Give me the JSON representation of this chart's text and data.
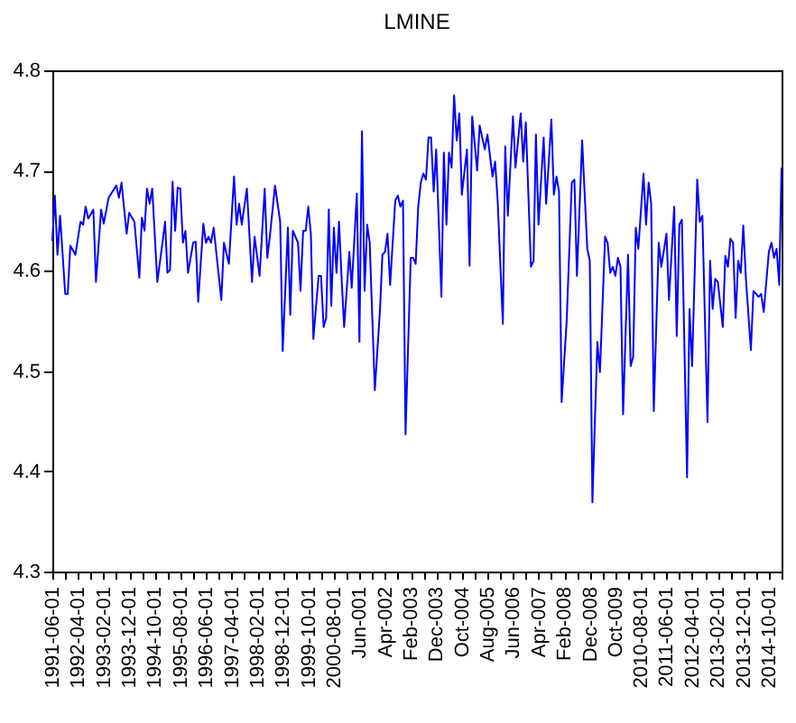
{
  "chart_data": {
    "type": "line",
    "title": "LMINE",
    "x": [
      "1991-06",
      "1991-07",
      "1991-08",
      "1991-09",
      "1991-11",
      "1991-12",
      "1992-01",
      "1992-03",
      "1992-05",
      "1992-06",
      "1992-07",
      "1992-08",
      "1992-10",
      "1992-11",
      "1993-01",
      "1993-02",
      "1993-04",
      "1993-07",
      "1993-08",
      "1993-09",
      "1993-11",
      "1993-12",
      "1994-02",
      "1994-04",
      "1994-05",
      "1994-06",
      "1994-07",
      "1994-08",
      "1994-09",
      "1994-11",
      "1995-01",
      "1995-02",
      "1995-03",
      "1995-04",
      "1995-05",
      "1995-06",
      "1995-07",
      "1995-08",
      "1995-09",
      "1995-10",
      "1995-11",
      "1996-01",
      "1996-02",
      "1996-03",
      "1996-05",
      "1996-06",
      "1996-07",
      "1996-08",
      "1996-09",
      "1996-12",
      "1997-01",
      "1997-03",
      "1997-05",
      "1997-06",
      "1997-07",
      "1997-08",
      "1997-10",
      "1997-12",
      "1998-01",
      "1998-03",
      "1998-05",
      "1998-06",
      "1998-07",
      "1998-09",
      "1998-11",
      "1998-12",
      "1999-02",
      "1999-03",
      "1999-04",
      "1999-06",
      "1999-07",
      "1999-08",
      "1999-09",
      "1999-10",
      "1999-11",
      "1999-12",
      "2000-02",
      "2000-03",
      "2000-04",
      "2000-05",
      "2000-06",
      "2000-07",
      "2000-08",
      "2000-09",
      "2000-10",
      "2000-11",
      "2000-12",
      "2001-02",
      "2001-03",
      "2001-05",
      "2001-06",
      "2001-07",
      "2001-08",
      "2001-09",
      "2001-10",
      "2001-12",
      "2002-02",
      "2002-03",
      "2002-04",
      "2002-05",
      "2002-06",
      "2002-08",
      "2002-09",
      "2002-10",
      "2002-11",
      "2002-12",
      "2003-02",
      "2003-03",
      "2003-04",
      "2003-05",
      "2003-06",
      "2003-07",
      "2003-08",
      "2003-09",
      "2003-10",
      "2003-11",
      "2003-12",
      "2004-02",
      "2004-03",
      "2004-04",
      "2004-05",
      "2004-06",
      "2004-07",
      "2004-08",
      "2004-09",
      "2004-10",
      "2004-12",
      "2005-01",
      "2005-02",
      "2005-04",
      "2005-05",
      "2005-07",
      "2005-08",
      "2005-10",
      "2005-11",
      "2005-12",
      "2006-02",
      "2006-03",
      "2006-04",
      "2006-06",
      "2006-07",
      "2006-09",
      "2006-10",
      "2006-11",
      "2007-01",
      "2007-02",
      "2007-03",
      "2007-04",
      "2007-06",
      "2007-07",
      "2007-09",
      "2007-10",
      "2007-11",
      "2007-12",
      "2008-01",
      "2008-03",
      "2008-05",
      "2008-06",
      "2008-07",
      "2008-09",
      "2008-11",
      "2008-12",
      "2009-01",
      "2009-03",
      "2009-04",
      "2009-06",
      "2009-07",
      "2009-08",
      "2009-09",
      "2009-10",
      "2009-11",
      "2009-12",
      "2010-01",
      "2010-03",
      "2010-04",
      "2010-05",
      "2010-06",
      "2010-07",
      "2010-09",
      "2010-10",
      "2010-11",
      "2010-12",
      "2011-01",
      "2011-03",
      "2011-04",
      "2011-06",
      "2011-07",
      "2011-09",
      "2011-10",
      "2011-11",
      "2011-12",
      "2012-02",
      "2012-03",
      "2012-04",
      "2012-06",
      "2012-07",
      "2012-08",
      "2012-10",
      "2012-11",
      "2012-12",
      "2013-01",
      "2013-02",
      "2013-04",
      "2013-05",
      "2013-06",
      "2013-07",
      "2013-08",
      "2013-09",
      "2013-10",
      "2013-11",
      "2013-12",
      "2014-01",
      "2014-03",
      "2014-04",
      "2014-05",
      "2014-06",
      "2014-07",
      "2014-08",
      "2014-10",
      "2014-11",
      "2014-12",
      "2015-01",
      "2015-02",
      "2015-03"
    ],
    "series": [
      {
        "color": "#0000ff",
        "values": [
          4.63,
          4.675,
          4.616,
          4.655,
          4.577,
          4.577,
          4.625,
          4.616,
          4.649,
          4.646,
          4.664,
          4.652,
          4.661,
          4.589,
          4.661,
          4.647,
          4.673,
          4.685,
          4.673,
          4.688,
          4.637,
          4.658,
          4.649,
          4.593,
          4.653,
          4.64,
          4.682,
          4.667,
          4.682,
          4.589,
          4.628,
          4.649,
          4.598,
          4.601,
          4.689,
          4.64,
          4.683,
          4.682,
          4.628,
          4.64,
          4.598,
          4.628,
          4.629,
          4.569,
          4.647,
          4.628,
          4.634,
          4.628,
          4.643,
          4.571,
          4.628,
          4.607,
          4.694,
          4.646,
          4.667,
          4.646,
          4.682,
          4.589,
          4.634,
          4.595,
          4.682,
          4.613,
          4.634,
          4.685,
          4.649,
          4.52,
          4.643,
          4.556,
          4.64,
          4.628,
          4.58,
          4.64,
          4.64,
          4.664,
          4.637,
          4.532,
          4.595,
          4.595,
          4.544,
          4.553,
          4.661,
          4.565,
          4.643,
          4.598,
          4.649,
          4.592,
          4.544,
          4.619,
          4.583,
          4.677,
          4.529,
          4.739,
          4.58,
          4.646,
          4.628,
          4.481,
          4.562,
          4.616,
          4.619,
          4.637,
          4.586,
          4.67,
          4.675,
          4.664,
          4.67,
          4.437,
          4.613,
          4.613,
          4.607,
          4.664,
          4.688,
          4.697,
          4.691,
          4.733,
          4.733,
          4.679,
          4.721,
          4.574,
          4.718,
          4.646,
          4.718,
          4.703,
          4.775,
          4.73,
          4.757,
          4.676,
          4.721,
          4.605,
          4.754,
          4.7,
          4.745,
          4.721,
          4.736,
          4.694,
          4.709,
          4.67,
          4.547,
          4.724,
          4.655,
          4.754,
          4.703,
          4.757,
          4.709,
          4.748,
          4.604,
          4.61,
          4.736,
          4.646,
          4.733,
          4.667,
          4.751,
          4.676,
          4.694,
          4.679,
          4.469,
          4.55,
          4.688,
          4.691,
          4.595,
          4.73,
          4.622,
          4.61,
          4.369,
          4.529,
          4.499,
          4.634,
          4.628,
          4.598,
          4.604,
          4.595,
          4.613,
          4.604,
          4.457,
          4.616,
          4.505,
          4.514,
          4.643,
          4.622,
          4.697,
          4.646,
          4.688,
          4.667,
          4.46,
          4.628,
          4.604,
          4.637,
          4.571,
          4.664,
          4.535,
          4.646,
          4.651,
          4.394,
          4.562,
          4.505,
          4.691,
          4.649,
          4.655,
          4.449,
          4.61,
          4.562,
          4.592,
          4.589,
          4.544,
          4.615,
          4.604,
          4.632,
          4.628,
          4.553,
          4.61,
          4.598,
          4.645,
          4.592,
          4.521,
          4.58,
          4.577,
          4.574,
          4.577,
          4.559,
          4.619,
          4.628,
          4.613,
          4.622,
          4.586,
          4.703
        ]
      }
    ],
    "xlim": [
      "1991-06",
      "2015-03"
    ],
    "xticks": [
      {
        "value": "1991-06",
        "label": "1991-06-01"
      },
      {
        "value": "1991-11",
        "label": null
      },
      {
        "value": "1992-04",
        "label": "1992-04-01"
      },
      {
        "value": "1992-09",
        "label": null
      },
      {
        "value": "1993-02",
        "label": "1993-02-01"
      },
      {
        "value": "1993-07",
        "label": null
      },
      {
        "value": "1993-12",
        "label": "1993-12-01"
      },
      {
        "value": "1994-05",
        "label": null
      },
      {
        "value": "1994-10",
        "label": "1994-10-01"
      },
      {
        "value": "1995-03",
        "label": null
      },
      {
        "value": "1995-08",
        "label": "1995-08-01"
      },
      {
        "value": "1996-01",
        "label": null
      },
      {
        "value": "1996-06",
        "label": "1996-06-01"
      },
      {
        "value": "1996-11",
        "label": null
      },
      {
        "value": "1997-04",
        "label": "1997-04-01"
      },
      {
        "value": "1997-09",
        "label": null
      },
      {
        "value": "1998-02",
        "label": "1998-02-01"
      },
      {
        "value": "1998-07",
        "label": null
      },
      {
        "value": "1998-12",
        "label": "1998-12-01"
      },
      {
        "value": "1999-05",
        "label": null
      },
      {
        "value": "1999-10",
        "label": "1999-10-01"
      },
      {
        "value": "2000-03",
        "label": null
      },
      {
        "value": "2000-08",
        "label": "2000-08-01"
      },
      {
        "value": "2001-01",
        "label": null
      },
      {
        "value": "2001-06",
        "label": "Jun-001"
      },
      {
        "value": "2001-11",
        "label": null
      },
      {
        "value": "2002-04",
        "label": "Apr-002"
      },
      {
        "value": "2002-09",
        "label": null
      },
      {
        "value": "2003-02",
        "label": "Feb-003"
      },
      {
        "value": "2003-07",
        "label": null
      },
      {
        "value": "2003-12",
        "label": "Dec-003"
      },
      {
        "value": "2004-05",
        "label": null
      },
      {
        "value": "2004-10",
        "label": "Oct-004"
      },
      {
        "value": "2005-03",
        "label": null
      },
      {
        "value": "2005-08",
        "label": "Aug-005"
      },
      {
        "value": "2006-01",
        "label": null
      },
      {
        "value": "2006-06",
        "label": "Jun-006"
      },
      {
        "value": "2006-11",
        "label": null
      },
      {
        "value": "2007-04",
        "label": "Apr-007"
      },
      {
        "value": "2007-09",
        "label": null
      },
      {
        "value": "2008-02",
        "label": "Feb-008"
      },
      {
        "value": "2008-07",
        "label": null
      },
      {
        "value": "2008-12",
        "label": "Dec-008"
      },
      {
        "value": "2009-05",
        "label": null
      },
      {
        "value": "2009-10",
        "label": "Oct-009"
      },
      {
        "value": "2010-03",
        "label": null
      },
      {
        "value": "2010-08",
        "label": "2010-08-01"
      },
      {
        "value": "2011-01",
        "label": null
      },
      {
        "value": "2011-06",
        "label": "2011-06-01"
      },
      {
        "value": "2011-11",
        "label": null
      },
      {
        "value": "2012-04",
        "label": "2012-04-01"
      },
      {
        "value": "2012-09",
        "label": null
      },
      {
        "value": "2013-02",
        "label": "2013-02-01"
      },
      {
        "value": "2013-07",
        "label": null
      },
      {
        "value": "2013-12",
        "label": "2013-12-01"
      },
      {
        "value": "2014-05",
        "label": null
      },
      {
        "value": "2014-10",
        "label": "2014-10-01"
      },
      {
        "value": "2015-03",
        "label": null
      }
    ],
    "ylim": [
      4.3,
      4.8
    ],
    "yticks": [
      4.3,
      4.4,
      4.5,
      4.6,
      4.7,
      4.8
    ],
    "line_style": "solid"
  }
}
